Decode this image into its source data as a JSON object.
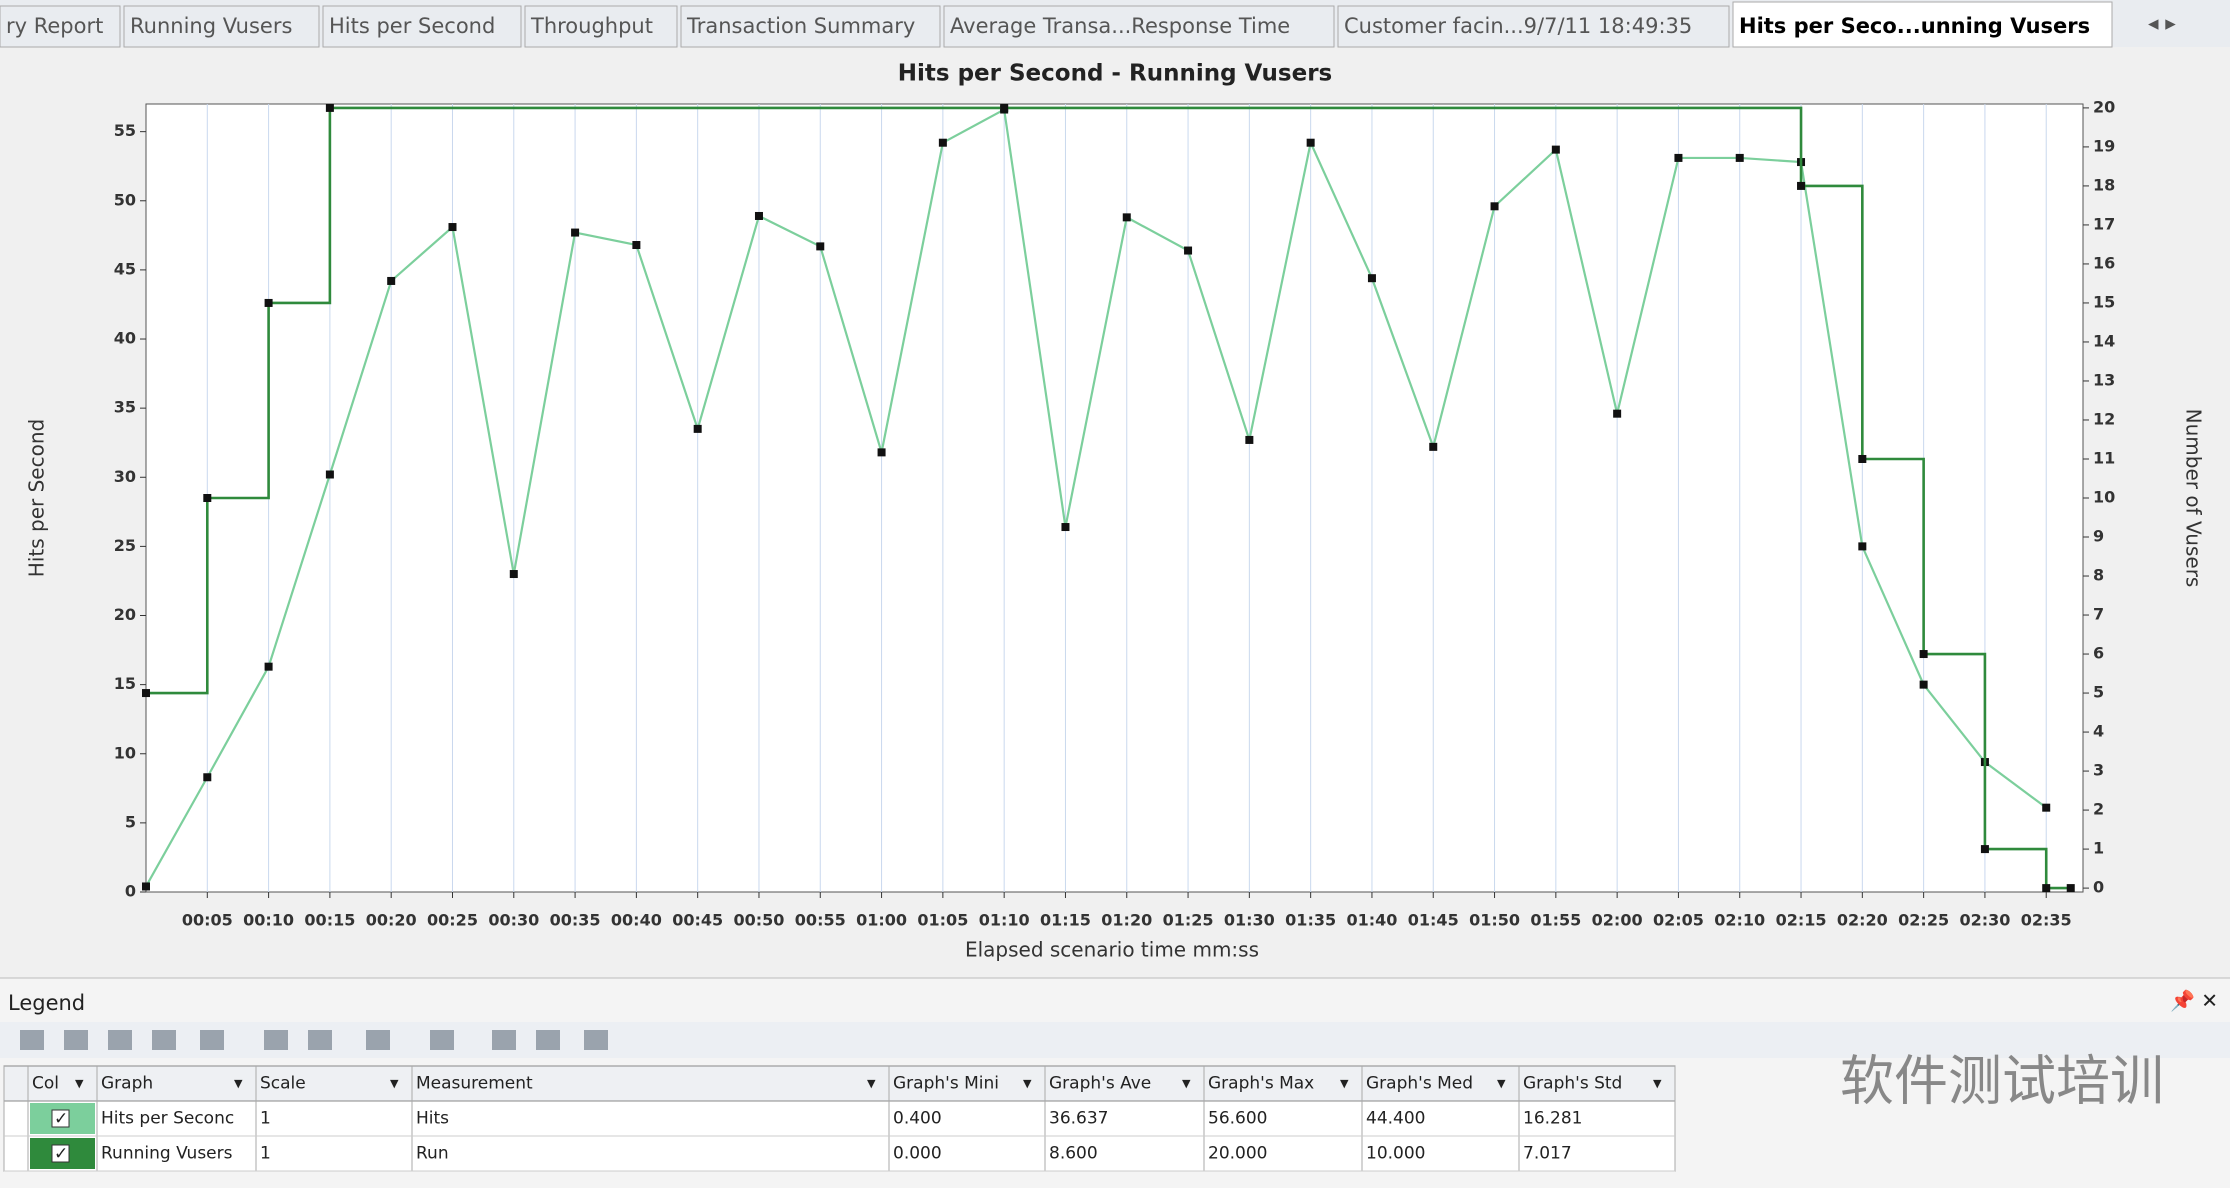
{
  "tabs": [
    "ry Report",
    "Running Vusers",
    "Hits per Second",
    "Throughput",
    "Transaction Summary",
    "Average Transa...Response Time",
    "Customer facin...9/7/11 18:49:35",
    "Hits per Seco...unning Vusers"
  ],
  "chart_data": {
    "type": "line",
    "title": "Hits per Second - Running Vusers",
    "x_label": "Elapsed scenario time mm:ss",
    "y_label": "Hits per Second",
    "y2_label": "Number of Vusers",
    "xlim": [
      0,
      158
    ],
    "xticks": [
      {
        "value": 5,
        "label": "00:05"
      },
      {
        "value": 10,
        "label": "00:10"
      },
      {
        "value": 15,
        "label": "00:15"
      },
      {
        "value": 20,
        "label": "00:20"
      },
      {
        "value": 25,
        "label": "00:25"
      },
      {
        "value": 30,
        "label": "00:30"
      },
      {
        "value": 35,
        "label": "00:35"
      },
      {
        "value": 40,
        "label": "00:40"
      },
      {
        "value": 45,
        "label": "00:45"
      },
      {
        "value": 50,
        "label": "00:50"
      },
      {
        "value": 55,
        "label": "00:55"
      },
      {
        "value": 60,
        "label": "01:00"
      },
      {
        "value": 65,
        "label": "01:05"
      },
      {
        "value": 70,
        "label": "01:10"
      },
      {
        "value": 75,
        "label": "01:15"
      },
      {
        "value": 80,
        "label": "01:20"
      },
      {
        "value": 85,
        "label": "01:25"
      },
      {
        "value": 90,
        "label": "01:30"
      },
      {
        "value": 95,
        "label": "01:35"
      },
      {
        "value": 100,
        "label": "01:40"
      },
      {
        "value": 105,
        "label": "01:45"
      },
      {
        "value": 110,
        "label": "01:50"
      },
      {
        "value": 115,
        "label": "01:55"
      },
      {
        "value": 120,
        "label": "02:00"
      },
      {
        "value": 125,
        "label": "02:05"
      },
      {
        "value": 130,
        "label": "02:10"
      },
      {
        "value": 135,
        "label": "02:15"
      },
      {
        "value": 140,
        "label": "02:20"
      },
      {
        "value": 145,
        "label": "02:25"
      },
      {
        "value": 150,
        "label": "02:30"
      },
      {
        "value": 155,
        "label": "02:35"
      }
    ],
    "ylim": [
      0,
      57
    ],
    "yticks": [
      0,
      5,
      10,
      15,
      20,
      25,
      30,
      35,
      40,
      45,
      50,
      55
    ],
    "y2lim": [
      -0.1,
      20.1
    ],
    "y2ticks": [
      0,
      1,
      2,
      3,
      4,
      5,
      6,
      7,
      8,
      9,
      10,
      11,
      12,
      13,
      14,
      15,
      16,
      17,
      18,
      19,
      20
    ],
    "grid": "x",
    "series": [
      {
        "name": "Hits per Second",
        "color": "#7ccf9c",
        "drawstyle": "linear",
        "x": [
          0,
          5,
          10,
          15,
          20,
          25,
          30,
          35,
          40,
          45,
          50,
          55,
          60,
          65,
          70,
          75,
          80,
          85,
          90,
          95,
          100,
          105,
          110,
          115,
          120,
          125,
          130,
          135,
          140,
          145,
          150,
          155
        ],
        "values": [
          0.4,
          8.3,
          16.3,
          30.2,
          44.2,
          48.1,
          23,
          47.7,
          46.8,
          33.5,
          48.9,
          46.7,
          31.8,
          54.2,
          56.6,
          26.4,
          48.8,
          46.4,
          32.7,
          54.2,
          44.4,
          32.2,
          49.6,
          53.7,
          34.6,
          53.1,
          53.1,
          52.8,
          25,
          15,
          9.4,
          6.1
        ]
      },
      {
        "name": "Running Vusers",
        "color": "#2f8a3c",
        "axis": "y2",
        "drawstyle": "steps-post",
        "x": [
          0,
          5,
          10,
          15,
          70,
          135,
          140,
          145,
          150,
          155,
          157
        ],
        "values": [
          5,
          10,
          15,
          20,
          20,
          18,
          11,
          6,
          1,
          0,
          0
        ]
      }
    ]
  },
  "legend": {
    "title": "Legend",
    "columns": [
      "Col",
      "Graph",
      "Scale",
      "Measurement",
      "Graph's Mini",
      "Graph's Ave",
      "Graph's Max",
      "Graph's Med",
      "Graph's Std"
    ],
    "rows": [
      [
        "Hits per Seconc",
        "1",
        "Hits",
        "0.400",
        "36.637",
        "56.600",
        "44.400",
        "16.281"
      ],
      [
        "Running Vusers",
        "1",
        "Run",
        "0.000",
        "8.600",
        "20.000",
        "10.000",
        "7.017"
      ]
    ]
  },
  "watermark": "软件测试培训"
}
